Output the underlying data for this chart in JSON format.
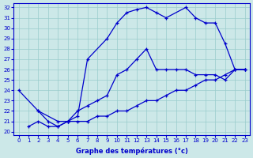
{
  "xlabel": "Graphe des températures (°c)",
  "bg_color": "#cce8e8",
  "grid_color": "#99cccc",
  "line_color": "#0000cc",
  "xlim": [
    -0.5,
    23.5
  ],
  "ylim": [
    19.7,
    32.4
  ],
  "xticks": [
    0,
    1,
    2,
    3,
    4,
    5,
    6,
    7,
    8,
    9,
    10,
    11,
    12,
    13,
    14,
    15,
    16,
    17,
    18,
    19,
    20,
    21,
    22,
    23
  ],
  "yticks": [
    20,
    21,
    22,
    23,
    24,
    25,
    26,
    27,
    28,
    29,
    30,
    31,
    32
  ],
  "series1_x": [
    0,
    2,
    3,
    4,
    5,
    6,
    7,
    9,
    10,
    11,
    12,
    13,
    14,
    15,
    17,
    18,
    19,
    20,
    21,
    22,
    23
  ],
  "series1_y": [
    24,
    22,
    21,
    20.5,
    21,
    21.5,
    27,
    29,
    30.5,
    31.5,
    31.8,
    32,
    31.5,
    31,
    32,
    31,
    30.5,
    30.5,
    28.5,
    26,
    26
  ],
  "series2_x": [
    2,
    4,
    5,
    6,
    7,
    8,
    9,
    10,
    11,
    12,
    13,
    14,
    15,
    16,
    17,
    18,
    19,
    20,
    21,
    22,
    23
  ],
  "series2_y": [
    22,
    21,
    21,
    22,
    22.5,
    23,
    23.5,
    25.5,
    26,
    27,
    28,
    26,
    26,
    26,
    26,
    25.5,
    25.5,
    25.5,
    25,
    26,
    26
  ],
  "series3_x": [
    1,
    2,
    3,
    4,
    5,
    6,
    7,
    8,
    9,
    10,
    11,
    12,
    13,
    14,
    15,
    16,
    17,
    18,
    19,
    20,
    21,
    22,
    23
  ],
  "series3_y": [
    20.5,
    21,
    20.5,
    20.5,
    21,
    21,
    21,
    21.5,
    21.5,
    22,
    22,
    22.5,
    23,
    23,
    23.5,
    24,
    24,
    24.5,
    25,
    25,
    25.5,
    26,
    26
  ]
}
